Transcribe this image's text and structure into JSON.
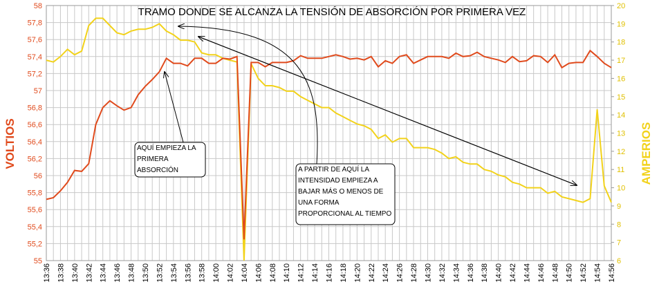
{
  "chart_data": {
    "type": "line",
    "title": "TRAMO DONDE SE ALCANZA LA TENSIÓN DE ABSORCIÓN POR PRIMERA VEZ",
    "y_label": "VOLTIOS",
    "y2_label": "AMPERIOS",
    "categories": [
      "13:36",
      null,
      "13:38",
      null,
      "13:40",
      null,
      "13:42",
      null,
      "13:44",
      null,
      "13:46",
      null,
      "13:48",
      null,
      "13:50",
      null,
      "13:52",
      null,
      "13:54",
      null,
      "13:56",
      null,
      "13:58",
      null,
      "14:00",
      null,
      "14:02",
      null,
      "14:04",
      null,
      "14:06",
      null,
      "14:08",
      null,
      "14:10",
      null,
      "14:12",
      null,
      "14:14",
      null,
      "14:16",
      null,
      "14:18",
      null,
      "14:20",
      null,
      "14:22",
      null,
      "14:24",
      null,
      "14:26",
      null,
      "14:28",
      null,
      "14:30",
      null,
      "14:32",
      null,
      "14:34",
      null,
      "14:36",
      null,
      "14:38",
      null,
      "14:40",
      null,
      "14:42",
      null,
      "14:44",
      null,
      "14:46",
      null,
      "14:48",
      null,
      "14:50",
      null,
      "14:52",
      null,
      "14:54",
      null,
      "14:56"
    ],
    "series": [
      {
        "color": "#e04a1c",
        "values": [
          55.72,
          55.74,
          55.82,
          55.92,
          56.06,
          56.05,
          56.14,
          56.6,
          56.8,
          56.88,
          56.82,
          56.77,
          56.8,
          56.95,
          57.05,
          57.13,
          57.22,
          57.38,
          57.32,
          57.32,
          57.29,
          57.38,
          57.38,
          57.32,
          57.32,
          57.38,
          57.37,
          57.4,
          55.25,
          57.33,
          57.33,
          57.28,
          57.33,
          57.33,
          57.33,
          57.35,
          57.41,
          57.38,
          57.38,
          57.38,
          57.4,
          57.42,
          57.4,
          57.37,
          57.38,
          57.36,
          57.4,
          57.28,
          57.35,
          57.32,
          57.4,
          57.42,
          57.32,
          57.36,
          57.4,
          57.4,
          57.4,
          57.38,
          57.44,
          57.4,
          57.41,
          57.45,
          57.4,
          57.38,
          57.36,
          57.33,
          57.4,
          57.34,
          57.35,
          57.41,
          57.4,
          57.33,
          57.42,
          57.27,
          57.32,
          57.33,
          57.33,
          57.47,
          57.4,
          57.32,
          57.27
        ]
      },
      {
        "color": "#f2d21a",
        "axis": "y2",
        "values": [
          17.0,
          16.9,
          17.2,
          17.6,
          17.3,
          17.5,
          18.9,
          19.3,
          19.3,
          18.9,
          18.5,
          18.4,
          18.6,
          18.7,
          18.7,
          18.8,
          19.0,
          18.6,
          18.4,
          18.1,
          18.1,
          18.0,
          17.4,
          17.3,
          17.3,
          17.1,
          17.0,
          16.9,
          6.0,
          16.8,
          16.0,
          15.6,
          15.6,
          15.5,
          15.3,
          15.3,
          15.0,
          14.8,
          14.6,
          14.4,
          14.4,
          14.1,
          13.9,
          13.7,
          13.5,
          13.4,
          13.2,
          12.7,
          12.9,
          12.5,
          12.7,
          12.7,
          12.2,
          12.2,
          12.2,
          12.1,
          11.9,
          11.6,
          11.7,
          11.4,
          11.3,
          11.3,
          11.0,
          10.9,
          10.7,
          10.6,
          10.3,
          10.2,
          10.0,
          10.0,
          10.0,
          9.7,
          9.8,
          9.5,
          9.4,
          9.3,
          9.2,
          9.4,
          14.3,
          10.1,
          9.2
        ]
      }
    ],
    "ylim": [
      55,
      58
    ],
    "yticks": [
      55,
      {
        "value": 55.2,
        "label": "55,2"
      },
      {
        "value": 55.4,
        "label": "55,4"
      },
      {
        "value": 55.6,
        "label": "55,6"
      },
      {
        "value": 55.8,
        "label": "55,8"
      },
      56,
      {
        "value": 56.2,
        "label": "56,2"
      },
      {
        "value": 56.4,
        "label": "56,4"
      },
      {
        "value": 56.6,
        "label": "56,6"
      },
      {
        "value": 56.8,
        "label": "56,8"
      },
      57,
      {
        "value": 57.2,
        "label": "57,2"
      },
      {
        "value": 57.4,
        "label": "57,4"
      },
      {
        "value": 57.6,
        "label": "57,6"
      },
      {
        "value": 57.8,
        "label": "57,8"
      },
      58
    ],
    "y2lim": [
      6,
      20
    ],
    "y2ticks": [
      6,
      7,
      8,
      9,
      10,
      11,
      12,
      13,
      14,
      15,
      16,
      17,
      18,
      19,
      20
    ],
    "grid": true,
    "annotations": [
      {
        "lines": [
          "AQUÍ EMPIEZA LA",
          "PRIMERA",
          "ABSORCIÓN"
        ]
      },
      {
        "lines": [
          "A PARTIR DE AQUÍ LA",
          "INTENSIDAD EMPIEZA A",
          "BAJAR MÁS O MENOS DE",
          "UNA FORMA",
          "PROPORCIONAL AL TIEMPO"
        ]
      }
    ]
  }
}
